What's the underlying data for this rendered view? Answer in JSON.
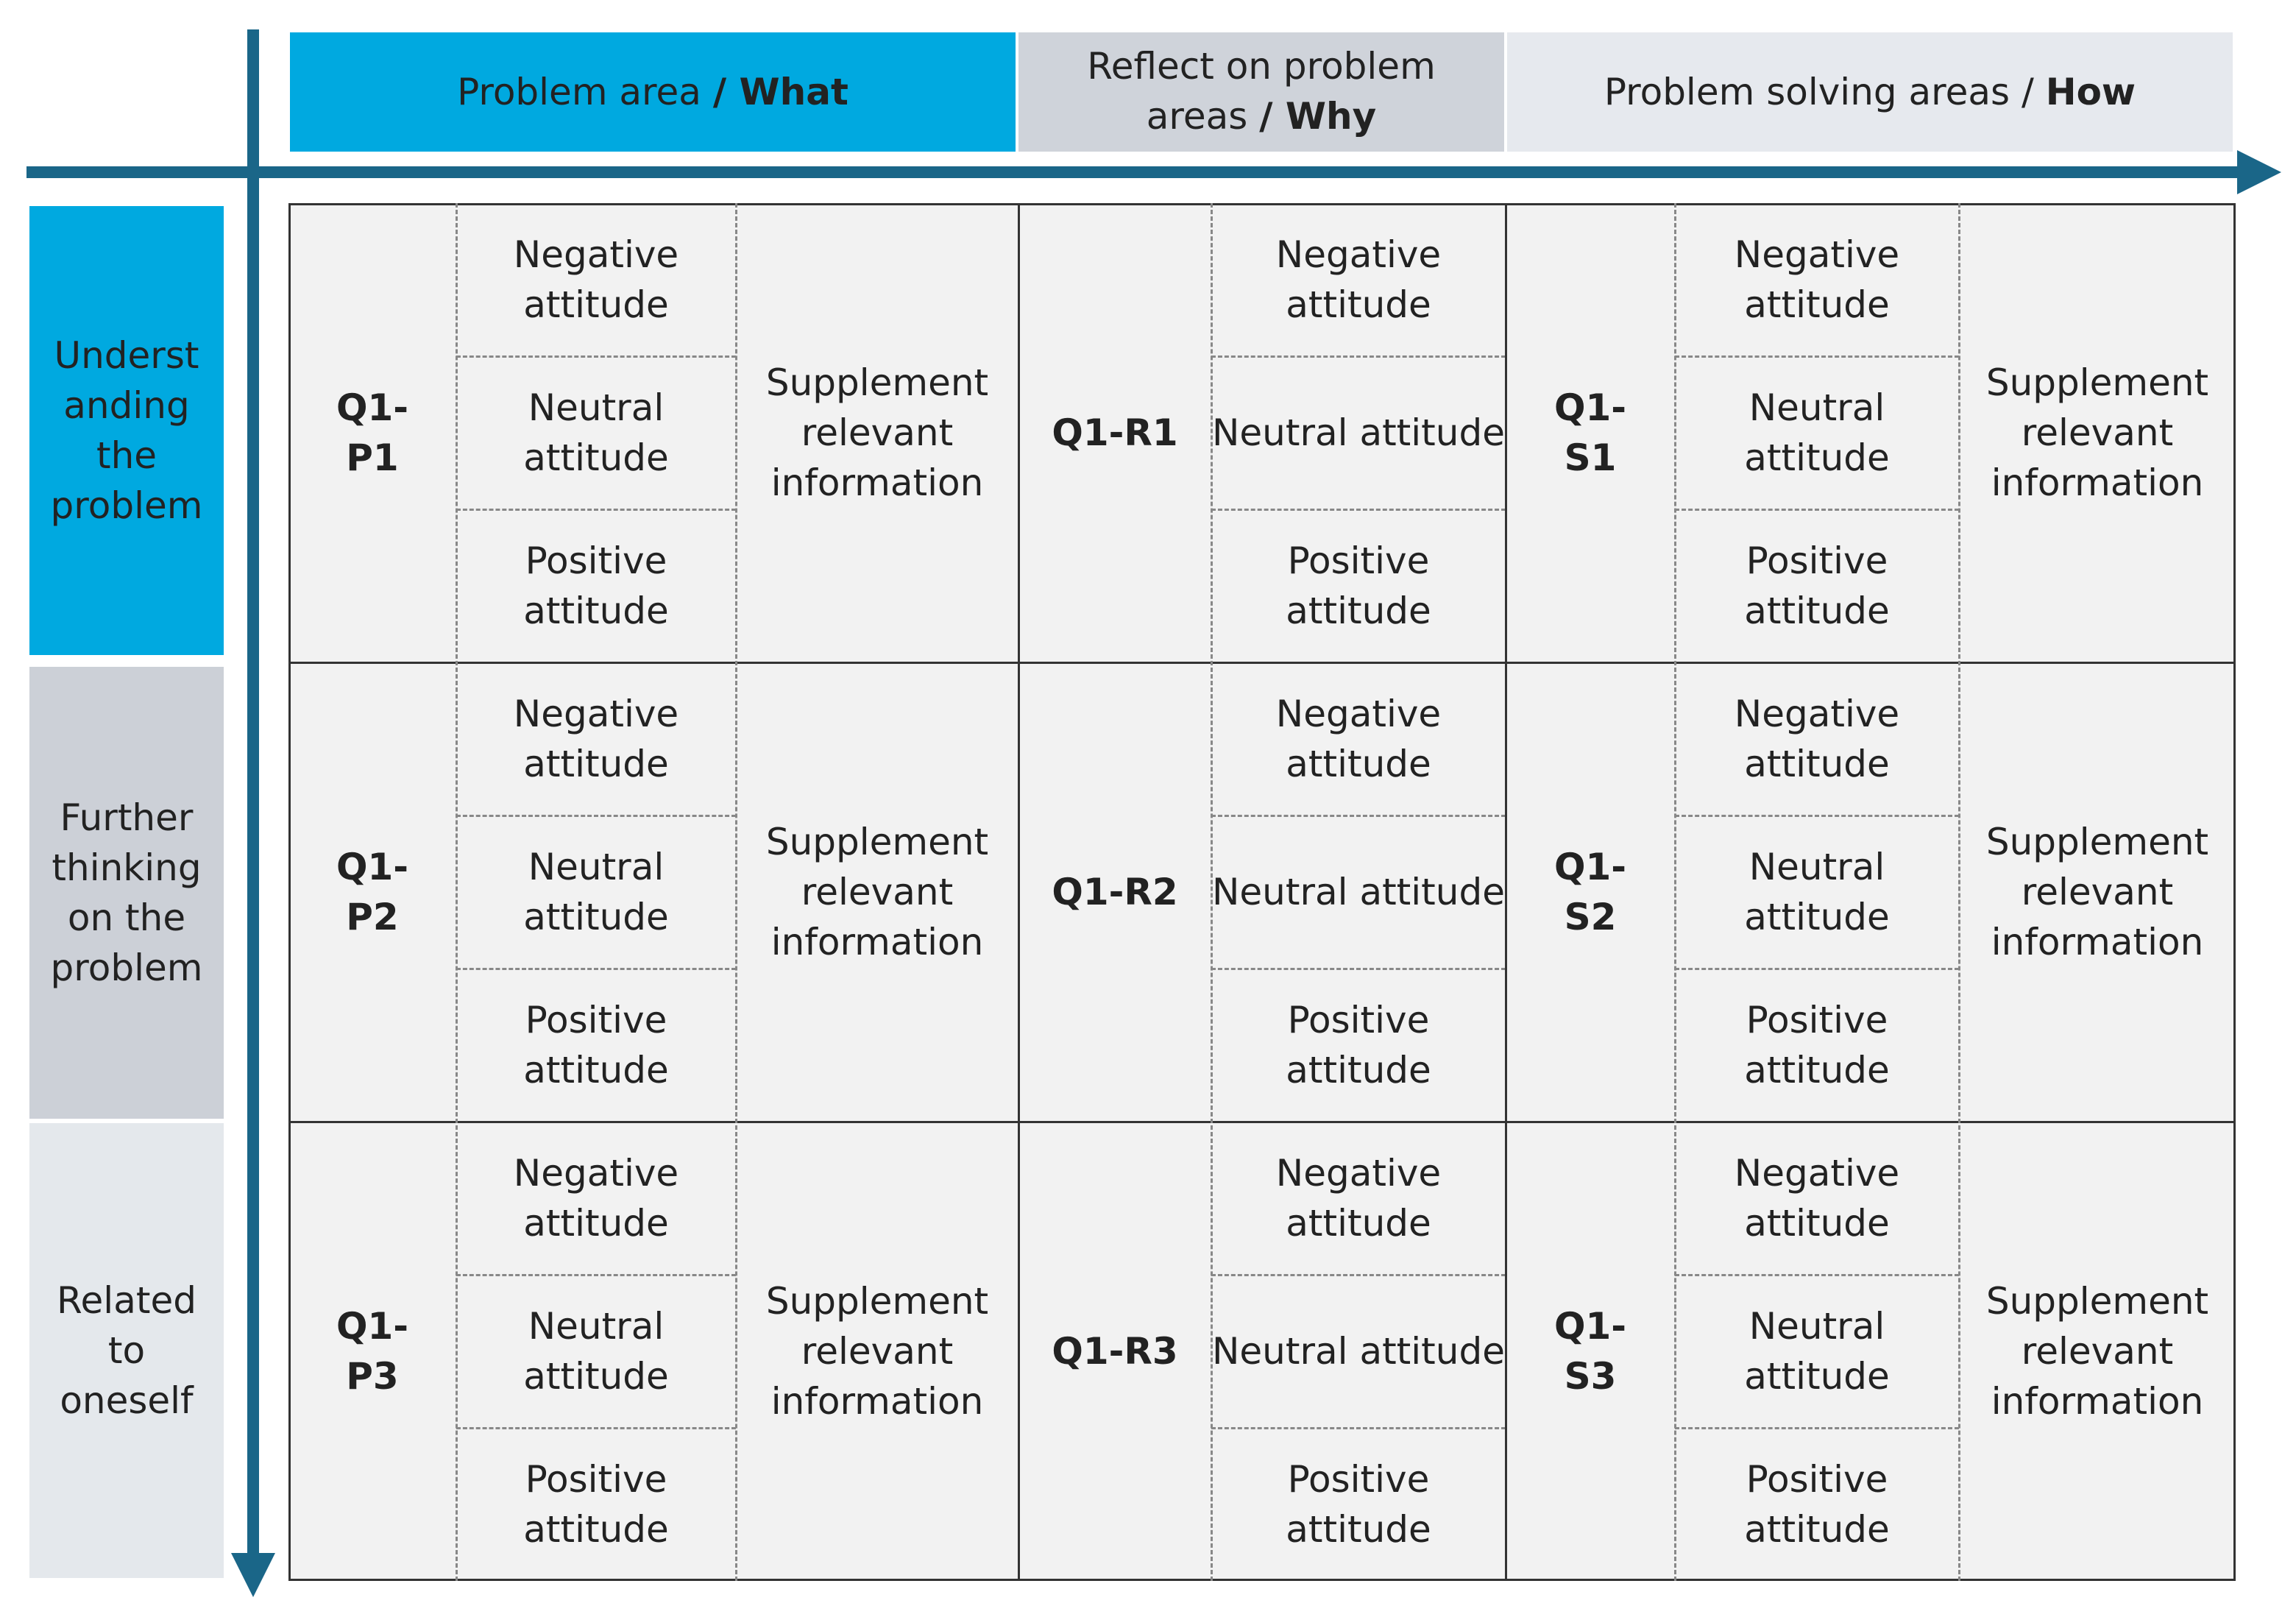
{
  "header": {
    "columns": [
      {
        "text": "Problem area ",
        "bold": "/ What"
      },
      {
        "text": "Reflect on problem areas ",
        "bold": "/ Why"
      },
      {
        "text": "Problem solving areas / ",
        "bold": "How"
      }
    ]
  },
  "row_labels": [
    "Understanding the problem",
    "Further thinking on the problem",
    "Related to oneself"
  ],
  "grid": {
    "rows": [
      {
        "p_label": "Q1-P1",
        "p_attitudes": [
          "Negative attitude",
          "Neutral attitude",
          "Positive attitude"
        ],
        "p_info": "Supplement relevant information",
        "r_label": "Q1-R1",
        "r_attitudes": [
          "Negative attitude",
          "Neutral attitude",
          "Positive attitude"
        ],
        "s_label": "Q1-S1",
        "s_attitudes": [
          "Negative attitude",
          "Neutral attitude",
          "Positive attitude"
        ],
        "s_info": "Supplement relevant information"
      },
      {
        "p_label": "Q1-P2",
        "p_attitudes": [
          "Negative attitude",
          "Neutral attitude",
          "Positive attitude"
        ],
        "p_info": "Supplement relevant information",
        "r_label": "Q1-R2",
        "r_attitudes": [
          "Negative attitude",
          "Neutral attitude",
          "Positive attitude"
        ],
        "s_label": "Q1-S2",
        "s_attitudes": [
          "Negative attitude",
          "Neutral attitude",
          "Positive attitude"
        ],
        "s_info": "Supplement relevant information"
      },
      {
        "p_label": "Q1-P3",
        "p_attitudes": [
          "Negative attitude",
          "Neutral attitude",
          "Positive attitude"
        ],
        "p_info": "Supplement relevant information",
        "r_label": "Q1-R3",
        "r_attitudes": [
          "Negative attitude",
          "Neutral attitude",
          "Positive attitude"
        ],
        "s_label": "Q1-S3",
        "s_attitudes": [
          "Negative attitude",
          "Neutral attitude",
          "Positive attitude"
        ],
        "s_info": "Supplement relevant information"
      }
    ]
  }
}
